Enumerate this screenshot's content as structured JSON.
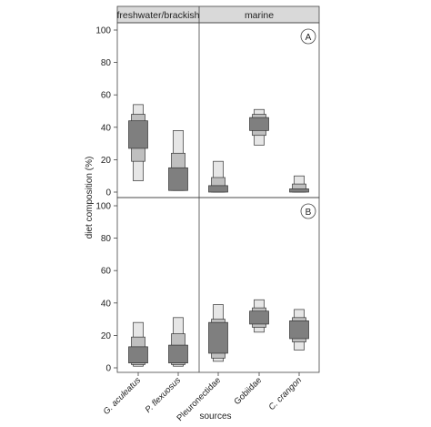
{
  "chart_data": {
    "type": "box",
    "group_labels": [
      "freshwater/brackish",
      "marine"
    ],
    "categories": [
      "G. aculeatus",
      "P. flexuosus",
      "Pleuronectidae",
      "Gobiidae",
      "C. crangon"
    ],
    "xlabel": "sources",
    "ylabel": "diet composition (%)",
    "ylim": [
      0,
      100
    ],
    "yticks": [
      0,
      20,
      40,
      60,
      80,
      100
    ],
    "band_colors": {
      "outer": "#e6e6e6",
      "middle": "#bfbfbf",
      "inner": "#7f7f7f"
    },
    "panels": [
      {
        "label": "A",
        "boxes": [
          {
            "category": "G. aculeatus",
            "outer": [
              7,
              54
            ],
            "middle": [
              19,
              48
            ],
            "inner": [
              27,
              44
            ]
          },
          {
            "category": "P. flexuosus",
            "outer": [
              1,
              38
            ],
            "middle": [
              1,
              24
            ],
            "inner": [
              1,
              15
            ]
          },
          {
            "category": "Pleuronectidae",
            "outer": [
              0,
              19
            ],
            "middle": [
              0,
              9
            ],
            "inner": [
              0,
              4
            ]
          },
          {
            "category": "Gobiidae",
            "outer": [
              29,
              51
            ],
            "middle": [
              35,
              48
            ],
            "inner": [
              38,
              46
            ]
          },
          {
            "category": "C. crangon",
            "outer": [
              0,
              10
            ],
            "middle": [
              0,
              5
            ],
            "inner": [
              0,
              2
            ]
          }
        ]
      },
      {
        "label": "B",
        "boxes": [
          {
            "category": "G. aculeatus",
            "outer": [
              1,
              28
            ],
            "middle": [
              2,
              19
            ],
            "inner": [
              3,
              13
            ]
          },
          {
            "category": "P. flexuosus",
            "outer": [
              1,
              31
            ],
            "middle": [
              2,
              21
            ],
            "inner": [
              3,
              14
            ]
          },
          {
            "category": "Pleuronectidae",
            "outer": [
              4,
              39
            ],
            "middle": [
              6,
              30
            ],
            "inner": [
              9,
              28
            ]
          },
          {
            "category": "Gobiidae",
            "outer": [
              22,
              42
            ],
            "middle": [
              25,
              37
            ],
            "inner": [
              27,
              35
            ]
          },
          {
            "category": "C. crangon",
            "outer": [
              11,
              36
            ],
            "middle": [
              16,
              31
            ],
            "inner": [
              18,
              29
            ]
          }
        ]
      }
    ]
  }
}
